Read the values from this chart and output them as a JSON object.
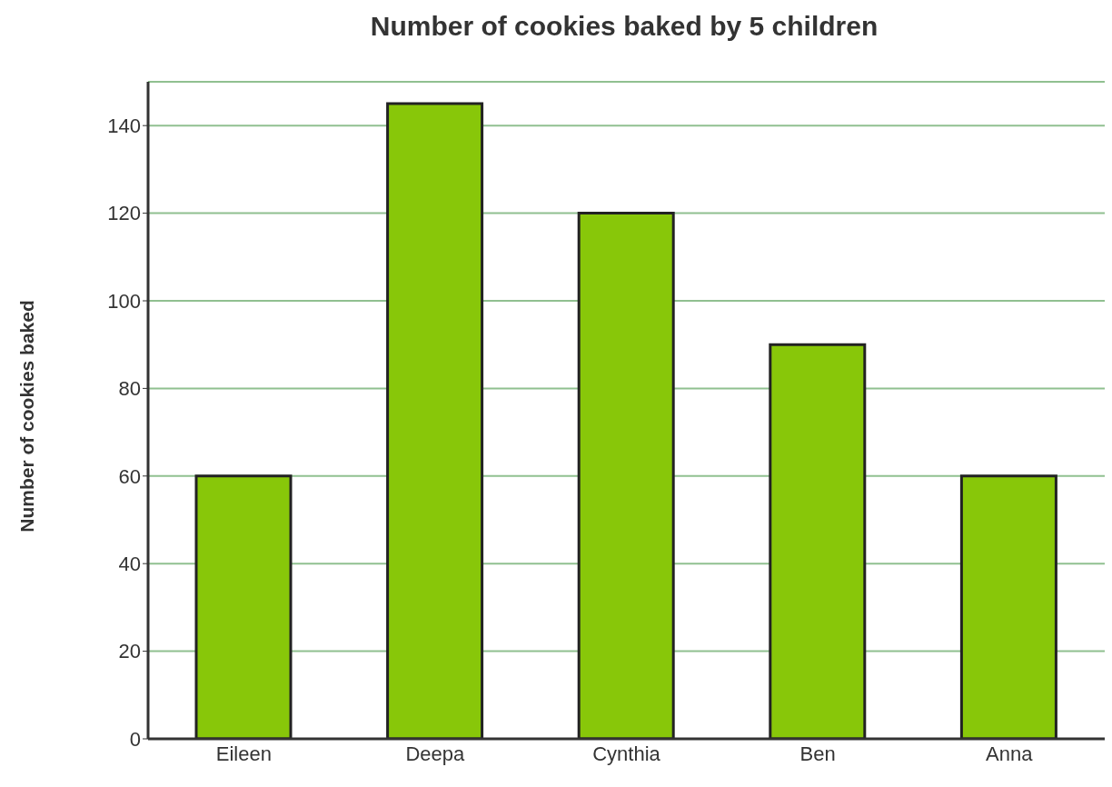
{
  "chart_data": {
    "type": "bar",
    "title": "Number of cookies baked by 5 children",
    "ylabel": "Number of cookies baked",
    "categories": [
      "Eileen",
      "Deepa",
      "Cynthia",
      "Ben",
      "Anna"
    ],
    "values": [
      60,
      145,
      120,
      90,
      60
    ],
    "color": "#88c709",
    "ylim": [
      0,
      150
    ],
    "yticks": [
      0,
      20,
      40,
      60,
      80,
      100,
      120,
      140
    ],
    "grid": "y"
  }
}
